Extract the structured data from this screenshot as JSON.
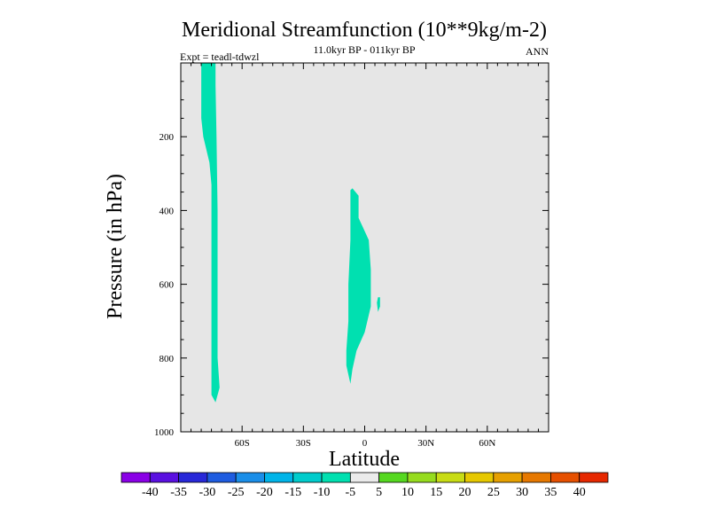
{
  "chart_data": {
    "type": "contour",
    "title": "Meridional Streamfunction (10**9kg/m-2)",
    "subtitle": "11.0kyr BP - 011kyr BP",
    "left_annotation": "Expt = teadl-tdwzl",
    "right_annotation": "ANN",
    "xlabel": "Latitude",
    "ylabel": "Pressure (in hPa)",
    "xlim": [
      -90,
      90
    ],
    "ylim": [
      0,
      1000
    ],
    "y_inverted": true,
    "x_ticks": [
      {
        "value": -60,
        "label": "60S"
      },
      {
        "value": -30,
        "label": "30S"
      },
      {
        "value": 0,
        "label": "0"
      },
      {
        "value": 30,
        "label": "30N"
      },
      {
        "value": 60,
        "label": "60N"
      }
    ],
    "y_ticks": [
      {
        "value": 200,
        "label": "200"
      },
      {
        "value": 400,
        "label": "400"
      },
      {
        "value": 600,
        "label": "600"
      },
      {
        "value": 800,
        "label": "800"
      },
      {
        "value": 1000,
        "label": "1000"
      }
    ],
    "background_color": "#e6e6e6",
    "regions": [
      {
        "name": "southern-cell",
        "level": "-10 to -5",
        "color": "#00e0b0",
        "points": [
          [
            -80,
            0
          ],
          [
            -73,
            0
          ],
          [
            -73,
            60
          ],
          [
            -72.5,
            200
          ],
          [
            -72,
            400
          ],
          [
            -72,
            600
          ],
          [
            -72,
            800
          ],
          [
            -71,
            880
          ],
          [
            -73,
            920
          ],
          [
            -75,
            900
          ],
          [
            -75,
            700
          ],
          [
            -75,
            500
          ],
          [
            -75,
            330
          ],
          [
            -76,
            270
          ],
          [
            -79,
            200
          ],
          [
            -80,
            150
          ],
          [
            -80,
            60
          ]
        ]
      },
      {
        "name": "tropical-cell",
        "level": "-10 to -5",
        "color": "#00e0b0",
        "points": [
          [
            -6,
            340
          ],
          [
            -3,
            360
          ],
          [
            -3,
            420
          ],
          [
            2,
            480
          ],
          [
            3,
            560
          ],
          [
            3,
            660
          ],
          [
            0,
            730
          ],
          [
            -4,
            780
          ],
          [
            -6,
            830
          ],
          [
            -7,
            870
          ],
          [
            -9,
            820
          ],
          [
            -9,
            780
          ],
          [
            -8,
            700
          ],
          [
            -8,
            600
          ],
          [
            -7,
            480
          ],
          [
            -7,
            380
          ],
          [
            -7,
            345
          ]
        ]
      },
      {
        "name": "small-patch",
        "level": "-10 to -5",
        "color": "#00e0b0",
        "points": [
          [
            6.5,
            635
          ],
          [
            7.5,
            635
          ],
          [
            7.5,
            660
          ],
          [
            6.5,
            675
          ],
          [
            6,
            650
          ]
        ]
      }
    ],
    "colorbar": {
      "labels": [
        "-40",
        "-35",
        "-30",
        "-25",
        "-20",
        "-15",
        "-10",
        "-5",
        "5",
        "10",
        "15",
        "20",
        "25",
        "30",
        "35",
        "40"
      ],
      "colors": [
        "#8a00e6",
        "#5a10e0",
        "#2828d8",
        "#1e5ce0",
        "#1a8ee8",
        "#00b4e8",
        "#00cccc",
        "#00e0b0",
        "#ebebeb",
        "#55d820",
        "#96dc1e",
        "#c8dc14",
        "#e6c800",
        "#e6a000",
        "#e67800",
        "#e65000",
        "#e62800"
      ]
    }
  }
}
